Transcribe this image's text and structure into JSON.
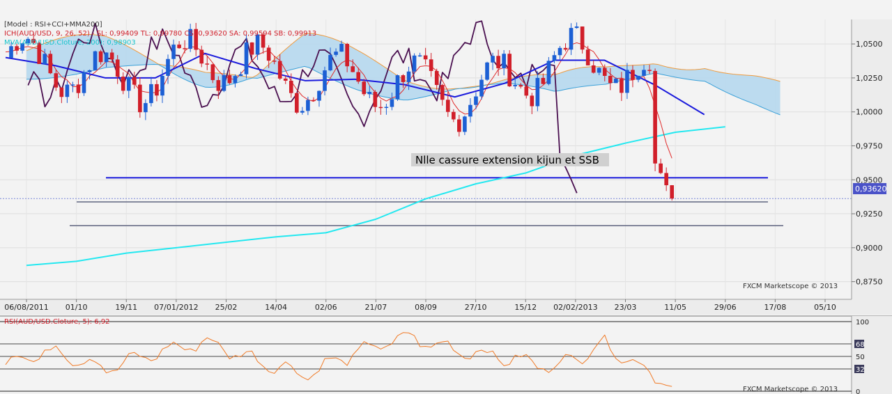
{
  "main_panel": {
    "legend_line1": "[Model : RSI+CCI+MMA200]",
    "legend_line2": "ICH(AUD/USD, 9, 26, 52) -  SL: 0,99409  TL: 0,99780  CS: 0,93620  SA: 0,99594  SB: 0,99913",
    "legend_line3": "MVA(AUD/USD.Cloture, 200): 0,98903",
    "annotation": "Nlle cassure extension kijun et SSB",
    "watermark": "FXCM Marketscope © 2013",
    "price_tag": "0,93620",
    "colors": {
      "up_candle": "#1c5fd4",
      "down_candle": "#d11f2a",
      "kijun": "#1a1adc",
      "tenkan": "#e02a2a",
      "chikou": "#4a1050",
      "mva200": "#22e8f0",
      "cloud_bull": "#b6d8ee",
      "cloud_bear": "#f6d3b3",
      "ssa_line": "#f09a3c",
      "ssb_line": "#3aa0d8"
    }
  },
  "rsi_panel": {
    "legend": "RSI(AUD/USD.Cloture, 5): 6,92",
    "watermark": "FXCM Marketscope © 2013",
    "levels": [
      "100",
      "68",
      "50",
      "32",
      "0"
    ]
  },
  "chart_data": [
    {
      "type": "candlestick",
      "pair": "AUD/USD",
      "x_tick_labels": [
        "06/08/2011",
        "01/10",
        "19/11",
        "07/01/2012",
        "25/02",
        "14/04",
        "02/06",
        "21/07",
        "08/09",
        "27/10",
        "15/12",
        "02/02/2013",
        "23/03",
        "11/05",
        "29/06",
        "17/08",
        "05/10"
      ],
      "y_tick_labels": [
        "1,0500",
        "1,0250",
        "1,0000",
        "0,9750",
        "0,9500",
        "0,9250",
        "0,9000",
        "0,8750"
      ],
      "ylim": [
        0.862,
        1.068
      ],
      "current_price": 0.9362,
      "horizontal_levels": [
        {
          "value": 0.9515,
          "label": "Nlle cassure extension kijun et SSB"
        },
        {
          "value": 0.9337
        },
        {
          "value": 0.9162
        }
      ],
      "mva200": {
        "x": [
          "06/08/2011",
          "01/10",
          "19/11",
          "07/01/2012",
          "25/02",
          "14/04",
          "02/06",
          "21/07",
          "08/09",
          "27/10",
          "15/12",
          "02/02/2013",
          "23/03",
          "11/05",
          "29/06"
        ],
        "values": [
          0.887,
          0.89,
          0.896,
          0.9,
          0.904,
          0.908,
          0.911,
          0.921,
          0.936,
          0.947,
          0.955,
          0.968,
          0.977,
          0.985,
          0.989
        ]
      },
      "kijun": {
        "x": [
          "06/08/2011",
          "01/10",
          "19/11",
          "07/01/2012",
          "25/02",
          "14/04",
          "02/06",
          "21/07",
          "08/09",
          "27/10",
          "15/12",
          "02/02/2013",
          "23/03",
          "11/05",
          "29/06"
        ],
        "values": [
          1.04,
          1.034,
          1.025,
          1.025,
          1.043,
          1.032,
          1.023,
          1.024,
          1.02,
          1.011,
          1.021,
          1.038,
          1.038,
          1.02,
          0.998
        ]
      },
      "rsi": {
        "ylim": [
          0,
          100
        ],
        "levels": [
          32,
          50,
          68
        ],
        "x": [
          "06/08/2011",
          "01/10",
          "19/11",
          "07/01/2012",
          "25/02",
          "14/04",
          "02/06",
          "21/07",
          "08/09",
          "27/10",
          "15/12",
          "02/02/2013",
          "23/03",
          "11/05",
          "29/06"
        ],
        "values": [
          42,
          58,
          32,
          55,
          71,
          45,
          24,
          55,
          78,
          60,
          48,
          35,
          68,
          22,
          6.92
        ]
      }
    }
  ]
}
